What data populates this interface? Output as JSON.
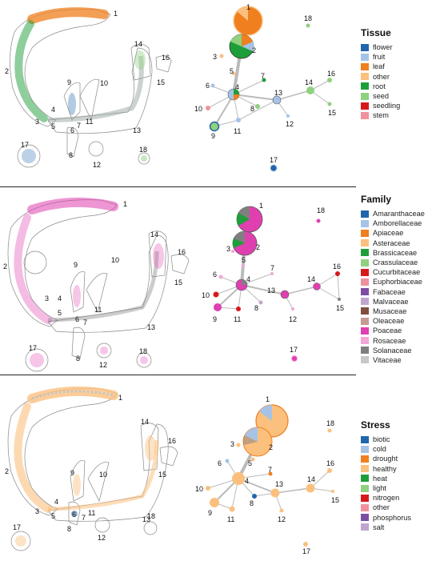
{
  "node_labels": [
    "1",
    "2",
    "3",
    "4",
    "5",
    "6",
    "7",
    "8",
    "9",
    "10",
    "11",
    "12",
    "13",
    "14",
    "15",
    "16",
    "17",
    "18"
  ],
  "legends": [
    {
      "title": "Tissue",
      "items": [
        {
          "label": "flower",
          "color": "#2166ac"
        },
        {
          "label": "fruit",
          "color": "#a6c3e6"
        },
        {
          "label": "leaf",
          "color": "#f07f1e"
        },
        {
          "label": "other",
          "color": "#fbc07e"
        },
        {
          "label": "root",
          "color": "#1e9e3a"
        },
        {
          "label": "seed",
          "color": "#8fd17f"
        },
        {
          "label": "seedling",
          "color": "#d7191c"
        },
        {
          "label": "stem",
          "color": "#f0929d"
        }
      ]
    },
    {
      "title": "Family",
      "items": [
        {
          "label": "Amaranthaceae",
          "color": "#2166ac"
        },
        {
          "label": "Amborellaceae",
          "color": "#a6c3e6"
        },
        {
          "label": "Apiaceae",
          "color": "#f07f1e"
        },
        {
          "label": "Asteraceae",
          "color": "#fbc07e"
        },
        {
          "label": "Brassicaceae",
          "color": "#1e9e3a"
        },
        {
          "label": "Crassulaceae",
          "color": "#8fd17f"
        },
        {
          "label": "Cucurbitaceae",
          "color": "#d7191c"
        },
        {
          "label": "Euphorbiaceae",
          "color": "#f0929d"
        },
        {
          "label": "Fabaceae",
          "color": "#7b4ea3"
        },
        {
          "label": "Malvaceae",
          "color": "#c2a5cf"
        },
        {
          "label": "Musaceae",
          "color": "#7f4f3f"
        },
        {
          "label": "Oleaceae",
          "color": "#c49c94"
        },
        {
          "label": "Poaceae",
          "color": "#e03fb0"
        },
        {
          "label": "Rosaceae",
          "color": "#f4a6d7"
        },
        {
          "label": "Solanaceae",
          "color": "#7f7f7f"
        },
        {
          "label": "Vitaceae",
          "color": "#c7c7c7"
        }
      ]
    },
    {
      "title": "Stress",
      "items": [
        {
          "label": "biotic",
          "color": "#2166ac"
        },
        {
          "label": "cold",
          "color": "#a6c3e6"
        },
        {
          "label": "drought",
          "color": "#f07f1e"
        },
        {
          "label": "healthy",
          "color": "#fbc07e"
        },
        {
          "label": "heat",
          "color": "#1e9e3a"
        },
        {
          "label": "light",
          "color": "#8fd17f"
        },
        {
          "label": "nitrogen",
          "color": "#d7191c"
        },
        {
          "label": "other",
          "color": "#f0929d"
        },
        {
          "label": "phosphorus",
          "color": "#7b4ea3"
        },
        {
          "label": "salt",
          "color": "#c2a5cf"
        }
      ]
    }
  ]
}
